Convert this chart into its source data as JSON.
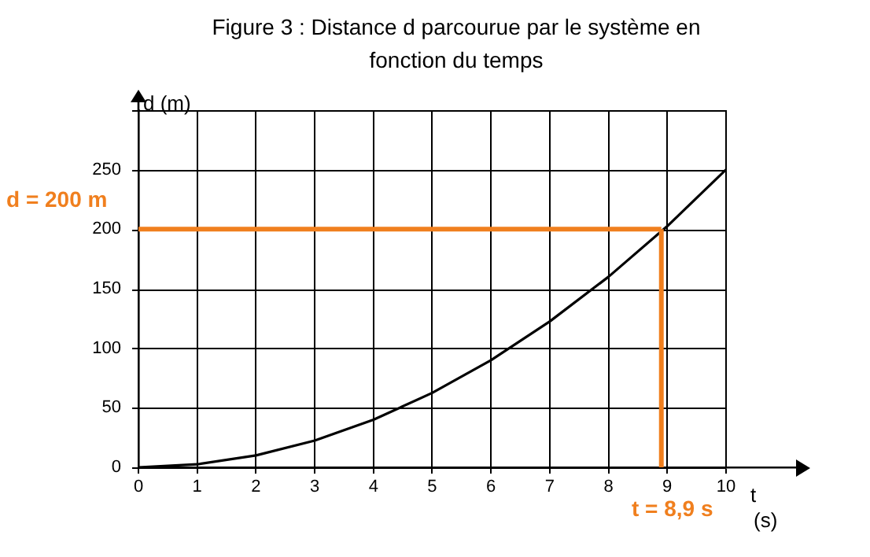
{
  "chart_data": {
    "type": "line",
    "title": [
      "Figure 3 : Distance d parcourue par le système en",
      "fonction du temps"
    ],
    "xlabel": "t (s)",
    "ylabel": "d (m)",
    "x": [
      0,
      1,
      2,
      3,
      4,
      5,
      6,
      7,
      8,
      9,
      10
    ],
    "series": [
      {
        "color": "#000000",
        "values": [
          0,
          2.5,
          10,
          22.5,
          40,
          62.5,
          90,
          122.5,
          160,
          202.5,
          250
        ]
      }
    ],
    "xlim": [
      0,
      11.3
    ],
    "xticks": [
      0,
      1,
      2,
      3,
      4,
      5,
      6,
      7,
      8,
      9,
      10
    ],
    "ylim": [
      0,
      300
    ],
    "yticks": [
      0,
      50,
      100,
      150,
      200,
      250,
      {
        "value": 300,
        "label": null
      }
    ],
    "grid": true,
    "legend": false,
    "marker": "none",
    "line_style": "solid",
    "ref_lines": [
      {
        "axis": "y",
        "value": 200,
        "label": "d = 200 m",
        "color": "#f07f1e"
      },
      {
        "axis": "x",
        "value": 8.9,
        "label": "t = 8,9 s",
        "color": "#f07f1e"
      }
    ]
  }
}
